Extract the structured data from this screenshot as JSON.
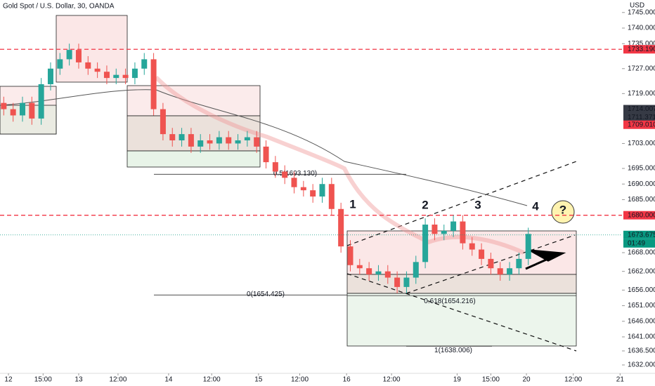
{
  "chart_data": {
    "type": "candlestick",
    "title": "Gold Spot / U.S. Dollar, 30, OANDA",
    "currency": "USD",
    "up_color": "#26a69a",
    "down_color": "#ef5350",
    "x": [
      2,
      7,
      12,
      17,
      22,
      27,
      32,
      37,
      42,
      47,
      52,
      57,
      62,
      67,
      72,
      77,
      82,
      87,
      92,
      97,
      102,
      107,
      112,
      117,
      122,
      127,
      132,
      137,
      142,
      147,
      152,
      157,
      162,
      167,
      172,
      177,
      182,
      187,
      192,
      197,
      202,
      207,
      212,
      217,
      222,
      227,
      232,
      237,
      242,
      247,
      252,
      257,
      262,
      267,
      272,
      277,
      282
    ],
    "open": [
      1716,
      1714,
      1712,
      1716,
      1711,
      1722,
      1727,
      1730,
      1733,
      1729,
      1727,
      1726,
      1724,
      1725,
      1724,
      1727,
      1730,
      1714,
      1706,
      1704,
      1706,
      1702,
      1704,
      1703,
      1705,
      1703,
      1704,
      1705,
      1702,
      1697,
      1694,
      1692,
      1689,
      1688,
      1686,
      1690,
      1682,
      1670,
      1664,
      1663,
      1661,
      1662,
      1660,
      1657,
      1660,
      1665,
      1677,
      1674,
      1675,
      1678,
      1671,
      1669,
      1666,
      1663,
      1661,
      1663,
      1666
    ],
    "high": [
      1718,
      1716,
      1718,
      1718,
      1724,
      1729,
      1732,
      1735,
      1735,
      1731,
      1729,
      1728,
      1727,
      1727,
      1729,
      1732,
      1732,
      1716,
      1708,
      1708,
      1708,
      1706,
      1706,
      1707,
      1707,
      1706,
      1707,
      1707,
      1704,
      1699,
      1696,
      1694,
      1691,
      1690,
      1692,
      1692,
      1684,
      1672,
      1666,
      1665,
      1664,
      1664,
      1662,
      1662,
      1667,
      1679,
      1679,
      1677,
      1680,
      1680,
      1673,
      1671,
      1668,
      1665,
      1665,
      1668,
      1676
    ],
    "low": [
      1712,
      1710,
      1710,
      1709,
      1709,
      1720,
      1725,
      1728,
      1727,
      1725,
      1724,
      1722,
      1722,
      1722,
      1722,
      1725,
      1712,
      1704,
      1702,
      1702,
      1700,
      1700,
      1701,
      1701,
      1701,
      1701,
      1702,
      1700,
      1695,
      1692,
      1690,
      1687,
      1686,
      1684,
      1684,
      1680,
      1668,
      1662,
      1661,
      1659,
      1659,
      1658,
      1655,
      1655,
      1658,
      1663,
      1672,
      1672,
      1673,
      1669,
      1667,
      1664,
      1661,
      1659,
      1659,
      1661,
      1664
    ],
    "close": [
      1714,
      1712,
      1716,
      1711,
      1722,
      1727,
      1730,
      1733,
      1729,
      1727,
      1726,
      1724,
      1725,
      1724,
      1727,
      1730,
      1714,
      1706,
      1704,
      1706,
      1702,
      1704,
      1703,
      1705,
      1703,
      1704,
      1705,
      1702,
      1697,
      1694,
      1692,
      1689,
      1688,
      1686,
      1690,
      1682,
      1670,
      1664,
      1663,
      1661,
      1662,
      1660,
      1657,
      1660,
      1665,
      1677,
      1674,
      1675,
      1678,
      1671,
      1669,
      1666,
      1663,
      1661,
      1663,
      1666,
      1674
    ],
    "xlim": [
      0,
      332
    ],
    "xticks": [
      {
        "value": 4.5,
        "label": "12"
      },
      {
        "value": 23,
        "label": "15:00"
      },
      {
        "value": 42,
        "label": "13"
      },
      {
        "value": 63,
        "label": "12:00"
      },
      {
        "value": 90,
        "label": "14"
      },
      {
        "value": 113,
        "label": "12:00"
      },
      {
        "value": 138,
        "label": "15"
      },
      {
        "value": 160,
        "label": "12:00"
      },
      {
        "value": 185,
        "label": "16"
      },
      {
        "value": 209,
        "label": "12:00"
      },
      {
        "value": 244,
        "label": "19"
      },
      {
        "value": 262,
        "label": "15:00"
      },
      {
        "value": 281,
        "label": "20"
      },
      {
        "value": 306,
        "label": "12:00"
      },
      {
        "value": 331,
        "label": "21"
      }
    ],
    "ylim": [
      1629.3,
      1749
    ],
    "yticks": [
      {
        "value": 1745,
        "label": "1745.000"
      },
      {
        "value": 1740,
        "label": "1740.000"
      },
      {
        "value": 1735,
        "label": "1735.000"
      },
      {
        "value": 1727,
        "label": "1727.000"
      },
      {
        "value": 1719,
        "label": "1719.000"
      },
      {
        "value": 1703,
        "label": "1703.000"
      },
      {
        "value": 1695,
        "label": "1695.000"
      },
      {
        "value": 1690,
        "label": "1690.000"
      },
      {
        "value": 1685,
        "label": "1685.000"
      },
      {
        "value": 1668,
        "label": "1668.000"
      },
      {
        "value": 1662,
        "label": "1662.000"
      },
      {
        "value": 1656,
        "label": "1656.000"
      },
      {
        "value": 1651,
        "label": "1651.000"
      },
      {
        "value": 1646,
        "label": "1646.000"
      },
      {
        "value": 1641,
        "label": "1641.000"
      },
      {
        "value": 1636.5,
        "label": "1636.500"
      },
      {
        "value": 1632,
        "label": "1632.000"
      }
    ],
    "price_tags": [
      {
        "value": 1733.19,
        "label": "1733.190",
        "color": "#f23645"
      },
      {
        "value": 1714.007,
        "label": "1714.007",
        "color": "#363a45"
      },
      {
        "value": 1711.371,
        "label": "1711.371",
        "color": "#363a45"
      },
      {
        "value": 1709.01,
        "label": "1709.010",
        "color": "#f23645"
      },
      {
        "value": 1680,
        "label": "1680.000",
        "color": "#f23645"
      },
      {
        "value": 1673.675,
        "label": "1673.675",
        "color": "#089981"
      }
    ],
    "countdown": "01:49",
    "levels": [
      {
        "value": 1733.19,
        "color": "#f23645"
      },
      {
        "value": 1680,
        "color": "#f23645"
      }
    ],
    "fib": [
      {
        "value": 1693.13,
        "label": "0.5(1693.130)"
      },
      {
        "value": 1654.425,
        "label": "0(1654.425)"
      },
      {
        "value": 1654.216,
        "label": "0.618(1654.216)"
      },
      {
        "value": 1638.006,
        "label": "1(1638.006)"
      }
    ],
    "annotations": [
      "1",
      "2",
      "3",
      "4",
      "?"
    ]
  }
}
